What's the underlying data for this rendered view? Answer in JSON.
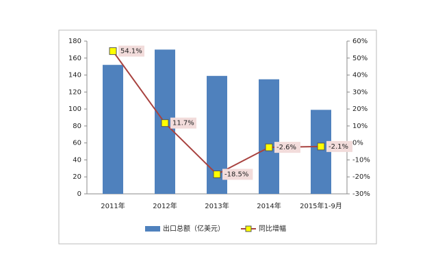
{
  "chart_data": {
    "type": "bar-line",
    "categories": [
      "2011年",
      "2012年",
      "2013年",
      "2014年",
      "2015年1-9月"
    ],
    "series": [
      {
        "name": "出口总额（亿美元）",
        "color": "#4f81bd",
        "type": "bar",
        "values": [
          152,
          170,
          139,
          135,
          99
        ]
      },
      {
        "name": "同比增幅",
        "color": "#a8423f",
        "type": "line",
        "axis": "y2",
        "marker_color": "#ffff00",
        "values": [
          54.1,
          11.7,
          -18.5,
          -2.6,
          -2.1
        ],
        "value_labels": [
          "54.1%",
          "11.7%",
          "-18.5%",
          "-2.6%",
          "-2.1%"
        ]
      }
    ],
    "ylim": [
      0,
      180
    ],
    "yticks": [
      0,
      20,
      40,
      60,
      80,
      100,
      120,
      140,
      160,
      180
    ],
    "y2lim": [
      -30,
      60
    ],
    "y2ticks": [
      {
        "value": -30,
        "label": "-30%"
      },
      {
        "value": -20,
        "label": "-20%"
      },
      {
        "value": -10,
        "label": "-10%"
      },
      {
        "value": 0,
        "label": "0%"
      },
      {
        "value": 10,
        "label": "10%"
      },
      {
        "value": 20,
        "label": "20%"
      },
      {
        "value": 30,
        "label": "30%"
      },
      {
        "value": 40,
        "label": "40%"
      },
      {
        "value": 50,
        "label": "50%"
      },
      {
        "value": 60,
        "label": "60%"
      }
    ],
    "legend": "bottom",
    "grid": false
  }
}
